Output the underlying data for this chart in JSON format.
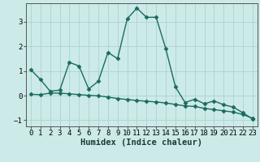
{
  "xlabel": "Humidex (Indice chaleur)",
  "background_color": "#cceae8",
  "grid_color": "#aad4d0",
  "line_color": "#1a6b5e",
  "xlim": [
    -0.5,
    23.5
  ],
  "ylim": [
    -1.25,
    3.75
  ],
  "xticks": [
    0,
    1,
    2,
    3,
    4,
    5,
    6,
    7,
    8,
    9,
    10,
    11,
    12,
    13,
    14,
    15,
    16,
    17,
    18,
    19,
    20,
    21,
    22,
    23
  ],
  "yticks": [
    -1,
    0,
    1,
    2,
    3
  ],
  "line1_x": [
    0,
    1,
    2,
    3,
    4,
    5,
    6,
    7,
    8,
    9,
    10,
    11,
    12,
    13,
    14,
    15,
    16,
    17,
    18,
    19,
    20,
    21,
    22,
    23
  ],
  "line1_y": [
    1.05,
    0.65,
    0.18,
    0.22,
    1.35,
    1.2,
    0.27,
    0.58,
    1.75,
    1.5,
    3.12,
    3.55,
    3.18,
    3.18,
    1.9,
    0.35,
    -0.28,
    -0.15,
    -0.33,
    -0.22,
    -0.37,
    -0.47,
    -0.7,
    -0.95
  ],
  "line2_x": [
    0,
    1,
    2,
    3,
    4,
    5,
    6,
    7,
    8,
    9,
    10,
    11,
    12,
    13,
    14,
    15,
    16,
    17,
    18,
    19,
    20,
    21,
    22,
    23
  ],
  "line2_y": [
    0.05,
    0.04,
    0.1,
    0.1,
    0.07,
    0.04,
    0.01,
    -0.01,
    -0.06,
    -0.12,
    -0.16,
    -0.2,
    -0.23,
    -0.26,
    -0.3,
    -0.36,
    -0.42,
    -0.44,
    -0.52,
    -0.57,
    -0.62,
    -0.67,
    -0.77,
    -0.92
  ],
  "marker": "D",
  "marker_size": 2.5,
  "line_width": 1.0,
  "tick_fontsize": 6.5,
  "xlabel_fontsize": 7.5
}
